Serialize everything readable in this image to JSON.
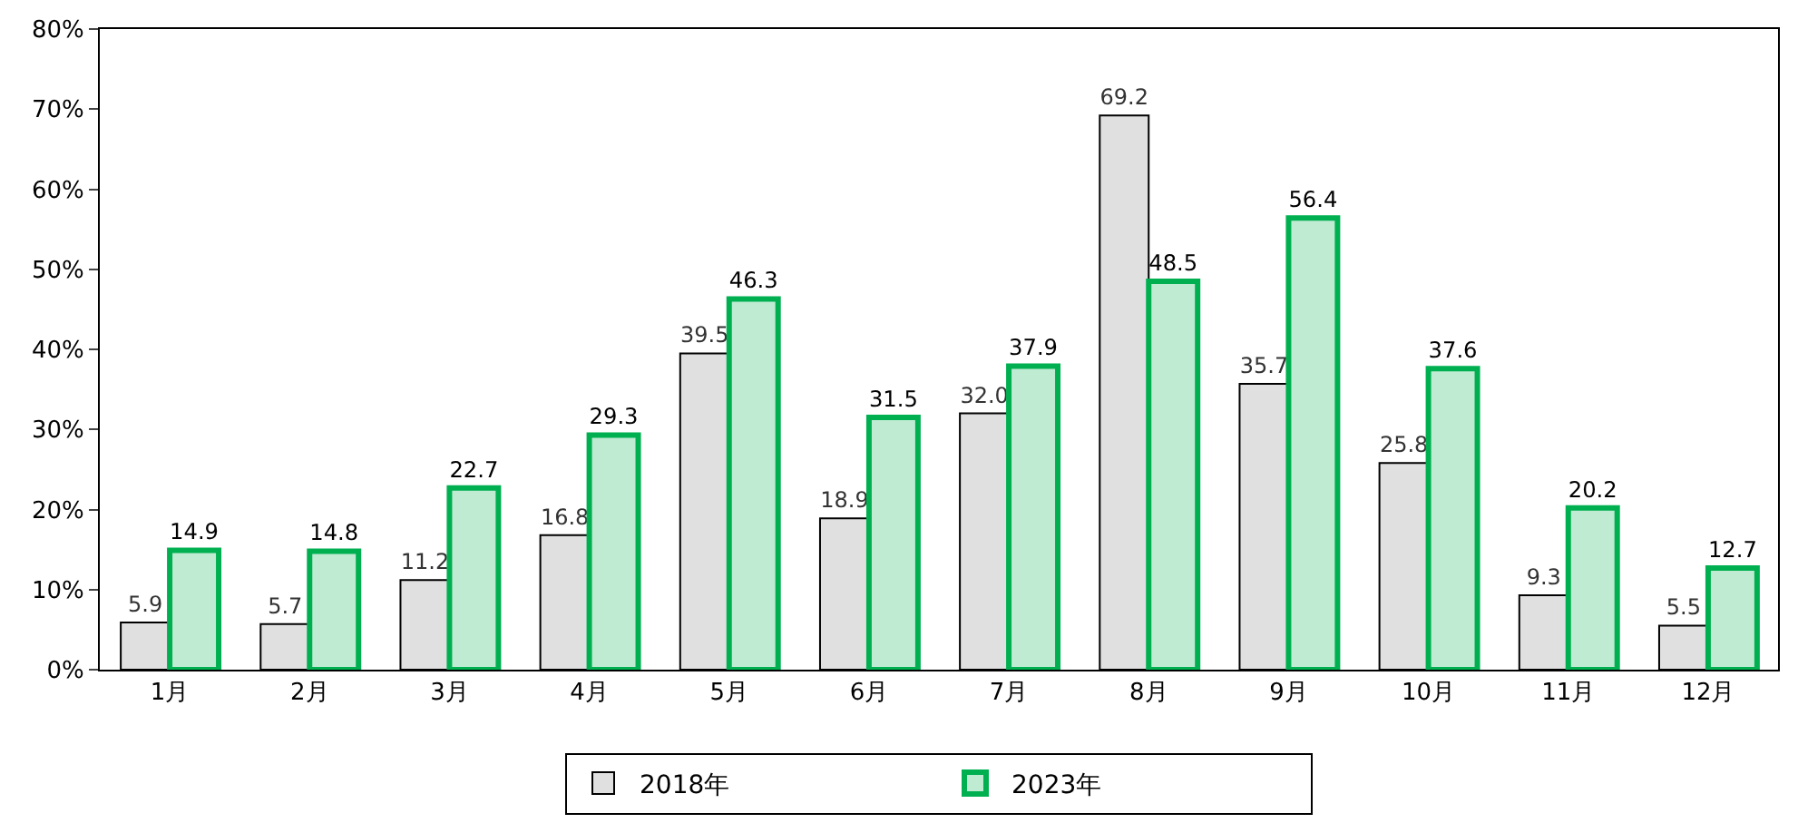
{
  "chart_data": {
    "type": "bar",
    "categories": [
      "1月",
      "2月",
      "3月",
      "4月",
      "5月",
      "6月",
      "7月",
      "8月",
      "9月",
      "10月",
      "11月",
      "12月"
    ],
    "series": [
      {
        "name": "2018年",
        "color": "#000000",
        "values": [
          5.9,
          5.7,
          11.2,
          16.8,
          39.5,
          18.9,
          32.0,
          69.2,
          35.7,
          25.8,
          9.3,
          5.5
        ],
        "value_labels": [
          "5.9",
          "5.7",
          "11.2",
          "16.8",
          "39.5",
          "18.9",
          "32.0",
          "69.2",
          "35.7",
          "25.8",
          "9.3",
          "5.5"
        ]
      },
      {
        "name": "2023年",
        "color": "#00b050",
        "values": [
          14.9,
          14.8,
          22.7,
          29.3,
          46.3,
          31.5,
          37.9,
          48.5,
          56.4,
          37.6,
          20.2,
          12.7
        ],
        "value_labels": [
          "14.9",
          "14.8",
          "22.7",
          "29.3",
          "46.3",
          "31.5",
          "37.9",
          "48.5",
          "56.4",
          "37.6",
          "20.2",
          "12.7"
        ]
      }
    ],
    "ylim": [
      0,
      80
    ],
    "yticks": [
      {
        "value": 0,
        "label": "0%"
      },
      {
        "value": 10,
        "label": "10%"
      },
      {
        "value": 20,
        "label": "20%"
      },
      {
        "value": 30,
        "label": "30%"
      },
      {
        "value": 40,
        "label": "40%"
      },
      {
        "value": 50,
        "label": "50%"
      },
      {
        "value": 60,
        "label": "60%"
      },
      {
        "value": 70,
        "label": "70%"
      },
      {
        "value": 80,
        "label": "80%"
      }
    ],
    "grid": false,
    "legend": "bottom"
  }
}
